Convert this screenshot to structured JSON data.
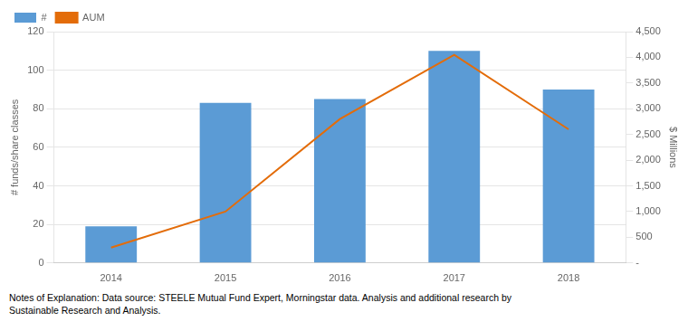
{
  "chart_data": {
    "type": "bar",
    "categories": [
      "2014",
      "2015",
      "2016",
      "2017",
      "2018"
    ],
    "series": [
      {
        "name": "#",
        "type": "bar",
        "color": "#5B9BD5",
        "values": [
          19,
          83,
          85,
          110,
          90
        ]
      },
      {
        "name": "AUM",
        "type": "line",
        "color": "#E36C09",
        "axis": "y2",
        "values": [
          300,
          1000,
          2800,
          4050,
          2600
        ]
      }
    ],
    "ylabel": "# funds/share classes",
    "y2label": "$ Millions",
    "ylim": [
      0,
      120
    ],
    "yticks": [
      0,
      20,
      40,
      60,
      80,
      100,
      120
    ],
    "y2lim": [
      0,
      4500
    ],
    "y2ticks": [
      {
        "value": 0,
        "label": "-"
      },
      500,
      {
        "value": 1000,
        "label": "1,000"
      },
      {
        "value": 1500,
        "label": "1,500"
      },
      {
        "value": 2000,
        "label": "2,000"
      },
      {
        "value": 2500,
        "label": "2,500"
      },
      {
        "value": 3000,
        "label": "3,000"
      },
      {
        "value": 3500,
        "label": "3,500"
      },
      {
        "value": 4000,
        "label": "4,000"
      },
      {
        "value": 4500,
        "label": "4,500"
      }
    ],
    "grid": true,
    "legend": "upper left",
    "annotations": [
      "Notes of Explanation:  Data source:  STEELE Mutual Fund Expert, Morningstar data. Analysis and additional research by\nSustainable Research and Analysis."
    ]
  }
}
